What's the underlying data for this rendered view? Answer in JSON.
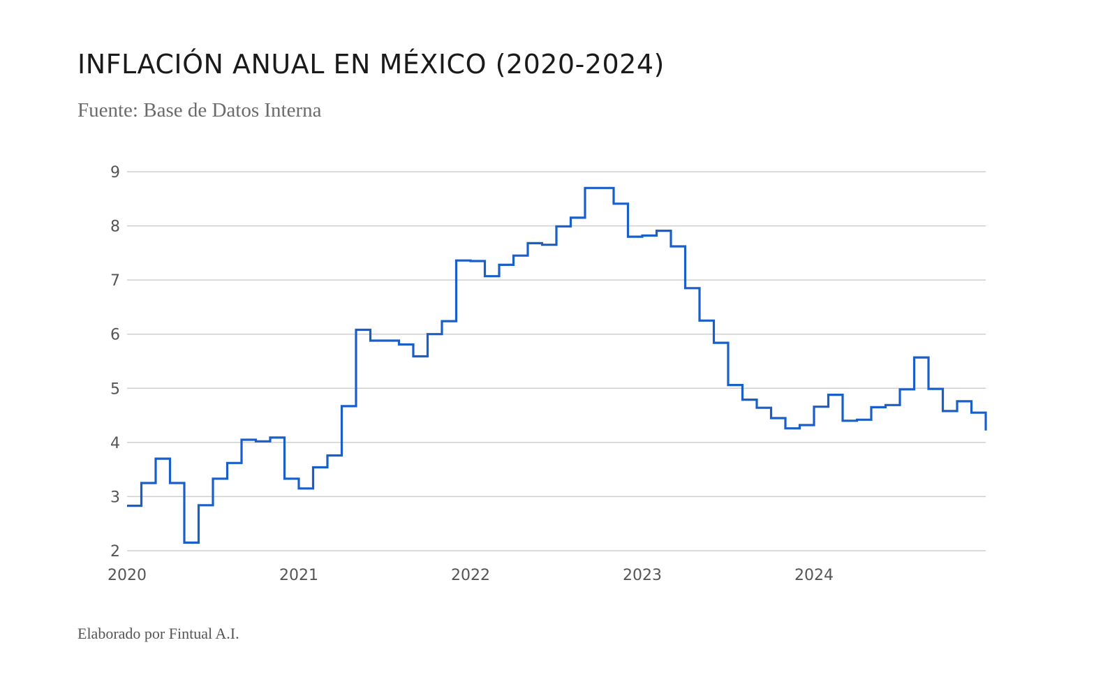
{
  "header": {
    "title": "INFLACIÓN ANUAL EN MÉXICO (2020-2024)",
    "subtitle": "Fuente: Base de Datos Interna"
  },
  "footer": {
    "credit": "Elaborado por Fintual A.I."
  },
  "colors": {
    "series": "#1a5fc8",
    "grid": "#cfcfcf",
    "text": "#1a1a1a",
    "muted": "#6b6b6b"
  },
  "chart_data": {
    "type": "line",
    "step": true,
    "title": "INFLACIÓN ANUAL EN MÉXICO (2020-2024)",
    "subtitle": "Fuente: Base de Datos Interna",
    "xlabel": "",
    "ylabel": "",
    "x_ticks": [
      "2020",
      "2021",
      "2022",
      "2023",
      "2024"
    ],
    "y_ticks": [
      "2",
      "3",
      "4",
      "5",
      "6",
      "7",
      "8",
      "9"
    ],
    "ylim": [
      2,
      9
    ],
    "xlim_months": [
      0,
      60
    ],
    "grid": true,
    "series": [
      {
        "name": "Inflación anual (%)",
        "start": "2020-01",
        "frequency": "monthly",
        "values": [
          2.83,
          3.25,
          3.7,
          3.25,
          2.15,
          2.84,
          3.33,
          3.62,
          4.05,
          4.02,
          4.09,
          3.33,
          3.15,
          3.54,
          3.76,
          4.67,
          6.08,
          5.88,
          5.88,
          5.81,
          5.59,
          6.0,
          6.24,
          7.36,
          7.35,
          7.07,
          7.28,
          7.45,
          7.68,
          7.65,
          7.99,
          8.15,
          8.7,
          8.7,
          8.41,
          7.8,
          7.82,
          7.91,
          7.62,
          6.85,
          6.25,
          5.84,
          5.06,
          4.79,
          4.64,
          4.45,
          4.26,
          4.32,
          4.66,
          4.88,
          4.4,
          4.42,
          4.65,
          4.69,
          4.98,
          5.57,
          4.99,
          4.58,
          4.76,
          4.55,
          4.22
        ]
      }
    ]
  }
}
